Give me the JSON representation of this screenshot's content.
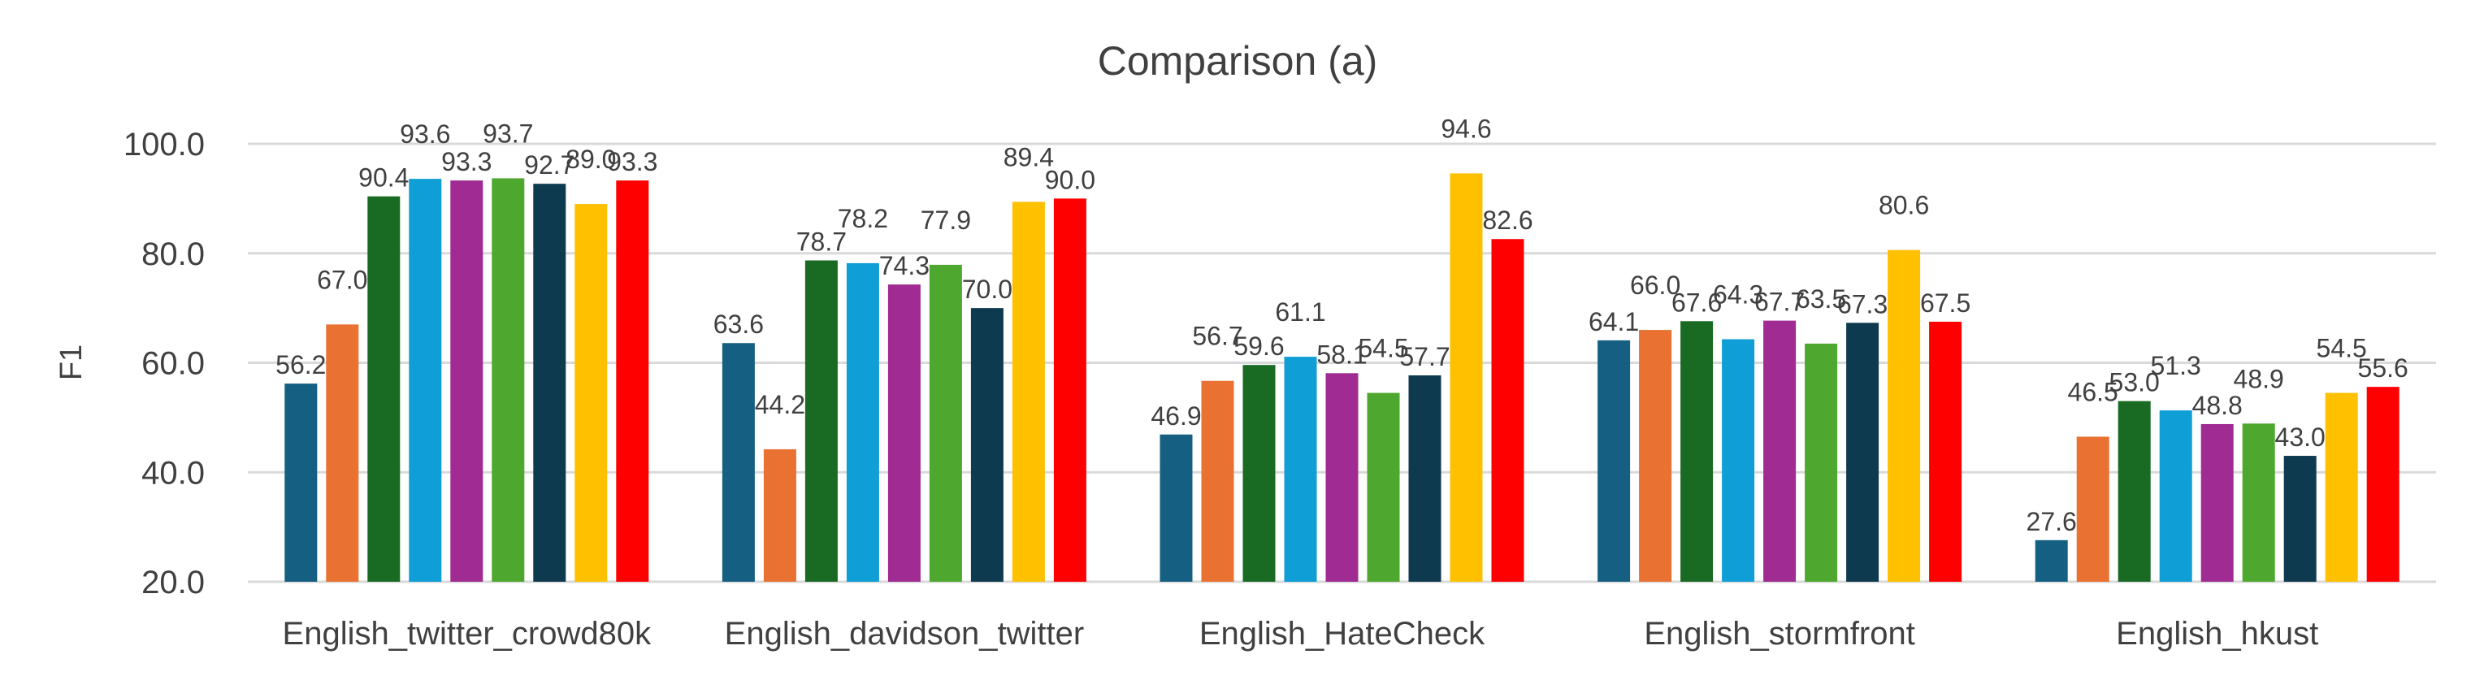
{
  "chart_data": {
    "type": "bar",
    "title": "Comparison (a)",
    "xlabel": "",
    "ylabel": "F1",
    "ylim": [
      20,
      100
    ],
    "yticks": [
      "20.0",
      "40.0",
      "60.0",
      "80.0",
      "100.0"
    ],
    "grid": true,
    "legend": "none",
    "categories": [
      "English_twitter_crowd80k",
      "English_davidson_twitter",
      "English_HateCheck",
      "English_stormfront",
      "English_hkust"
    ],
    "series": [
      {
        "color": "#156082",
        "values": [
          56.2,
          63.6,
          46.9,
          64.1,
          27.6
        ]
      },
      {
        "color": "#E97132",
        "values": [
          67.0,
          44.2,
          56.7,
          66.0,
          46.5
        ]
      },
      {
        "color": "#196B24",
        "values": [
          90.4,
          78.7,
          59.6,
          67.6,
          53.0
        ]
      },
      {
        "color": "#0F9ED5",
        "values": [
          93.6,
          78.2,
          61.1,
          64.3,
          51.3
        ]
      },
      {
        "color": "#A02B93",
        "values": [
          93.3,
          74.3,
          58.1,
          67.7,
          48.8
        ]
      },
      {
        "color": "#4EA72E",
        "values": [
          93.7,
          77.9,
          54.5,
          63.5,
          48.9
        ]
      },
      {
        "color": "#0E3A50",
        "values": [
          92.7,
          70.0,
          57.7,
          67.3,
          43.0
        ]
      },
      {
        "color": "#FFC000",
        "values": [
          89.0,
          89.4,
          94.6,
          80.6,
          54.5
        ]
      },
      {
        "color": "#FF0000",
        "values": [
          93.3,
          90.0,
          82.6,
          67.5,
          55.6
        ]
      }
    ]
  }
}
